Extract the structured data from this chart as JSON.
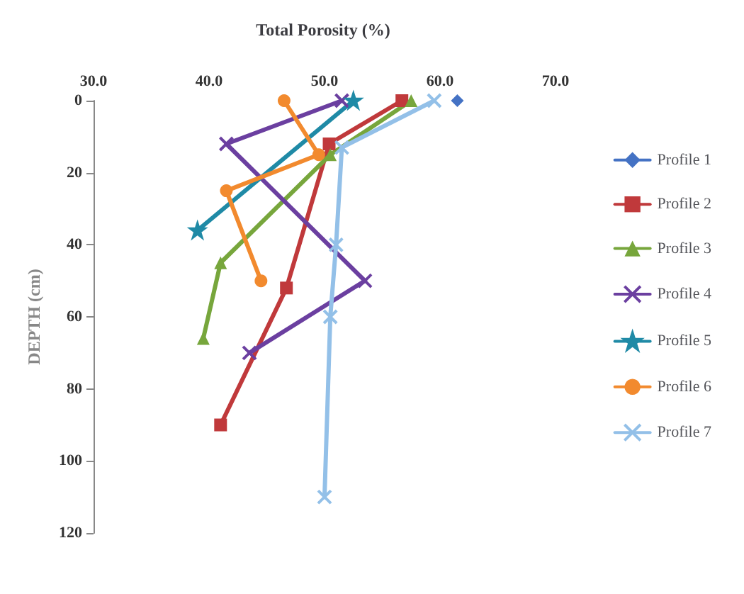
{
  "chart_data": {
    "type": "line",
    "title": "Total Porosity (%)",
    "ylabel": "DEPTH (cm)",
    "xlim": [
      30,
      70
    ],
    "xticks": [
      {
        "value": 30,
        "label": "30.0"
      },
      {
        "value": 40,
        "label": "40.0"
      },
      {
        "value": 50,
        "label": "50.0"
      },
      {
        "value": 60,
        "label": "60.0"
      },
      {
        "value": 70,
        "label": "70.0"
      }
    ],
    "ylim": [
      120,
      0
    ],
    "yticks": [
      0,
      20,
      40,
      60,
      80,
      100,
      120
    ],
    "grid": false,
    "legend": "right",
    "series": [
      {
        "name": "Profile 1",
        "color": "#4472c4",
        "marker": "diamond",
        "x": [
          61.5
        ],
        "values": [
          0
        ]
      },
      {
        "name": "Profile 2",
        "color": "#c0393b",
        "marker": "square",
        "x": [
          56.7,
          50.4,
          46.7,
          41
        ],
        "values": [
          0,
          12,
          52,
          90
        ]
      },
      {
        "name": "Profile 3",
        "color": "#77a63c",
        "marker": "triangle",
        "x": [
          57.5,
          50.5,
          41,
          39.5
        ],
        "values": [
          0,
          15,
          45,
          66
        ]
      },
      {
        "name": "Profile 4",
        "color": "#6b3fa0",
        "marker": "cross",
        "x": [
          51.5,
          41.5,
          53.5,
          43.5
        ],
        "values": [
          0,
          12,
          50,
          70
        ]
      },
      {
        "name": "Profile 5",
        "color": "#1f8aa6",
        "marker": "star",
        "x": [
          52.5,
          39
        ],
        "values": [
          0,
          36
        ]
      },
      {
        "name": "Profile 6",
        "color": "#f28a2e",
        "marker": "circle",
        "x": [
          46.5,
          49.5,
          41.5,
          44.5
        ],
        "values": [
          0,
          15,
          25,
          50
        ]
      },
      {
        "name": "Profile 7",
        "color": "#93c0e8",
        "marker": "cross",
        "x": [
          59.5,
          51.5,
          51,
          50.5,
          50
        ],
        "values": [
          0,
          13,
          40,
          60,
          110
        ]
      }
    ]
  }
}
